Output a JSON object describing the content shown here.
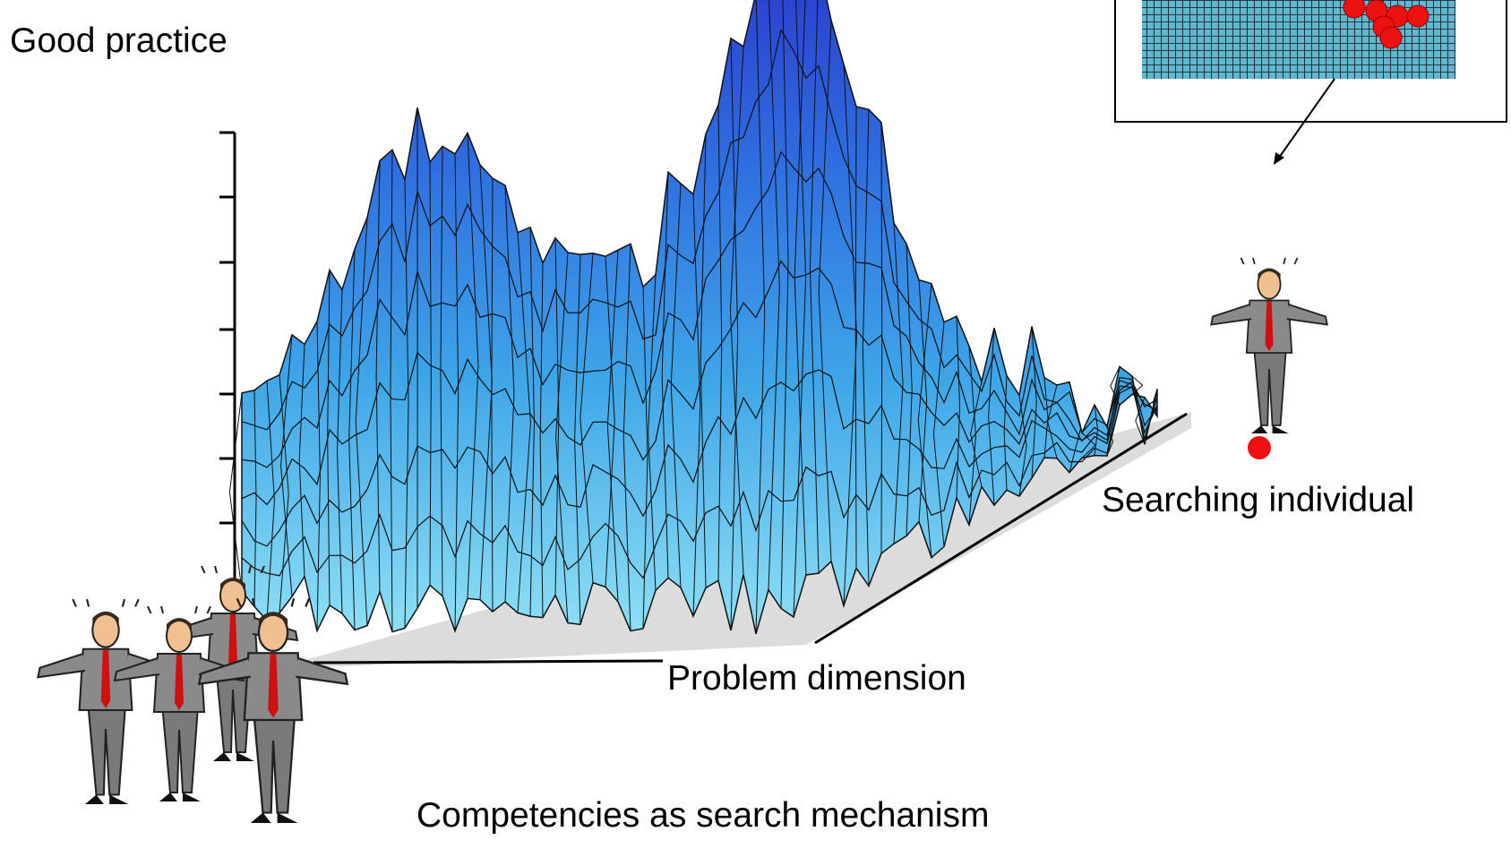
{
  "title": "Good practice",
  "landscape": {
    "x_axis_label": "Problem dimension"
  },
  "individual": {
    "label": "Searching individual"
  },
  "group": {
    "label": "Competencies as search mechanism"
  }
}
